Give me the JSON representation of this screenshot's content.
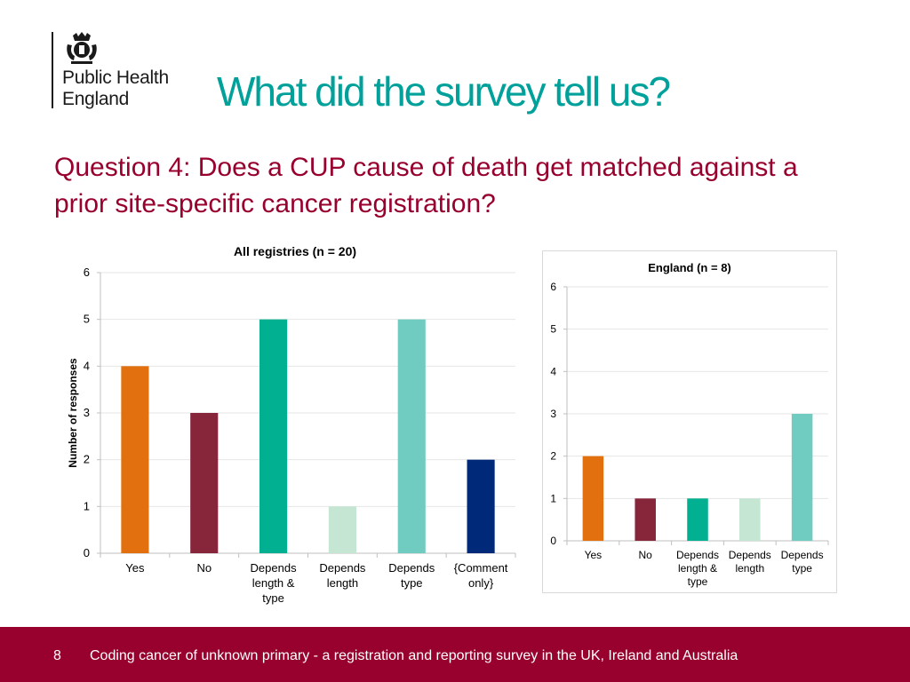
{
  "logo": {
    "line1": "Public Health",
    "line2": "England"
  },
  "title": "What did the survey tell us?",
  "question": "Question 4: Does a CUP cause of death get matched against a prior site-specific cancer registration?",
  "chart_data": [
    {
      "type": "bar",
      "title": "All registries (n = 20)",
      "ylabel": "Number of responses",
      "ylim": [
        0,
        6
      ],
      "yticks": [
        "0",
        "1",
        "2",
        "3",
        "4",
        "5",
        "6"
      ],
      "categories": [
        [
          "Yes"
        ],
        [
          "No"
        ],
        [
          "Depends",
          "length &",
          "type"
        ],
        [
          "Depends",
          "length"
        ],
        [
          "Depends",
          "type"
        ],
        [
          "{Comment",
          "only}"
        ]
      ],
      "values": [
        4,
        3,
        5,
        1,
        5,
        2
      ],
      "colors": [
        "#e2700f",
        "#87253a",
        "#00b091",
        "#c4e6d3",
        "#70cbc0",
        "#00297a"
      ],
      "grid": true,
      "legend": "none"
    },
    {
      "type": "bar",
      "title": "England (n = 8)",
      "ylabel": "",
      "ylim": [
        0,
        6
      ],
      "yticks": [
        "0",
        "1",
        "2",
        "3",
        "4",
        "5",
        "6"
      ],
      "categories": [
        [
          "Yes"
        ],
        [
          "No"
        ],
        [
          "Depends",
          "length &",
          "type"
        ],
        [
          "Depends",
          "length"
        ],
        [
          "Depends",
          "type"
        ]
      ],
      "values": [
        2,
        1,
        1,
        1,
        3
      ],
      "colors": [
        "#e2700f",
        "#87253a",
        "#00b091",
        "#c4e6d3",
        "#70cbc0"
      ],
      "grid": true,
      "legend": "none"
    }
  ],
  "footer": {
    "page_number": "8",
    "text": "Coding cancer of unknown primary - a registration and reporting survey in the UK, Ireland and Australia"
  }
}
